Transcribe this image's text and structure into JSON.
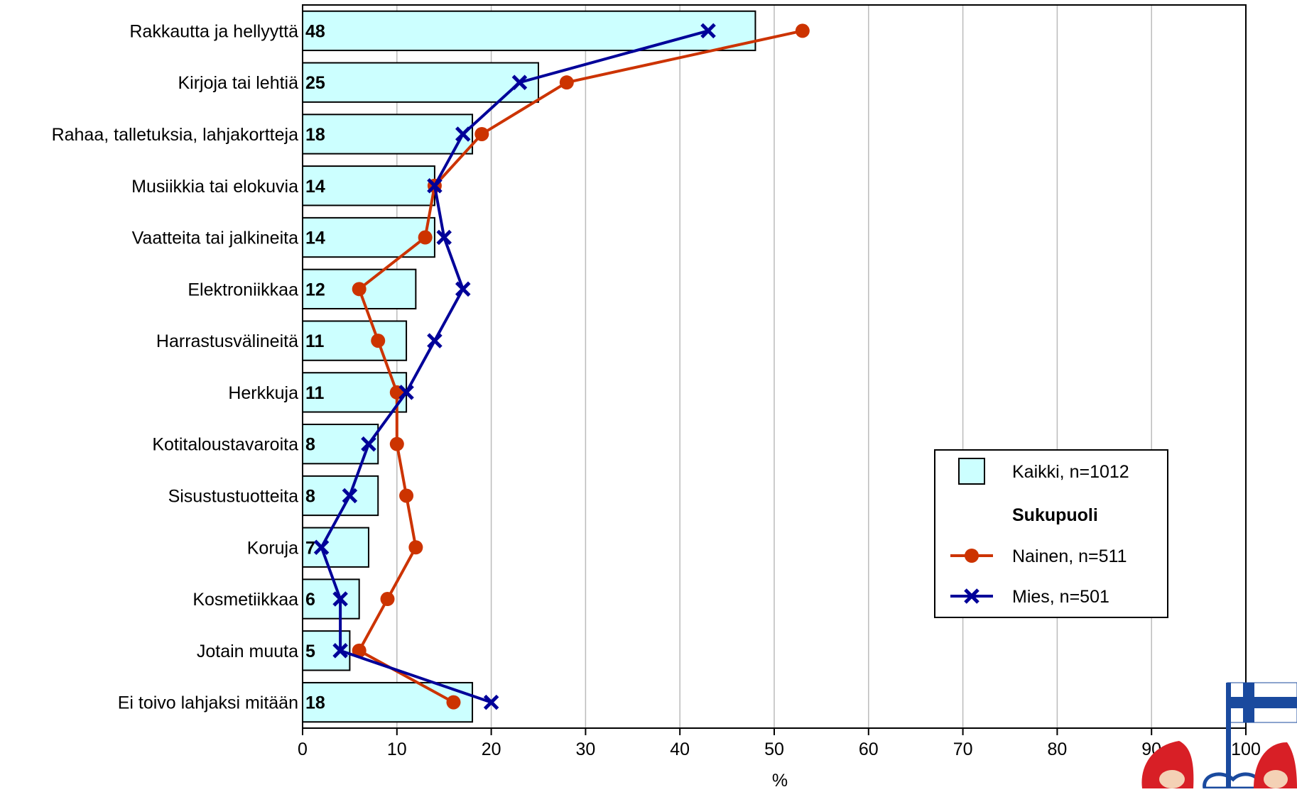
{
  "chart_data": {
    "type": "bar",
    "orientation": "horizontal",
    "categories": [
      "Rakkautta ja hellyyttä",
      "Kirjoja tai lehtiä",
      "Rahaa, talletuksia, lahjakortteja",
      "Musiikkia tai elokuvia",
      "Vaatteita tai jalkineita",
      "Elektroniikkaa",
      "Harrastusvälineitä",
      "Herkkuja",
      "Kotitaloustavaroita",
      "Sisustustuotteita",
      "Koruja",
      "Kosmetiikkaa",
      "Jotain muuta",
      "Ei toivo lahjaksi mitään"
    ],
    "series": [
      {
        "name": "Kaikki, n=1012",
        "type": "bar",
        "color": "#ccffff",
        "values": [
          48,
          25,
          18,
          14,
          14,
          12,
          11,
          11,
          8,
          8,
          7,
          6,
          5,
          18
        ]
      },
      {
        "name": "Nainen, n=511",
        "type": "line",
        "marker": "circle",
        "color": "#cc3300",
        "values": [
          53,
          28,
          19,
          14,
          13,
          6,
          8,
          10,
          10,
          11,
          12,
          9,
          6,
          16
        ]
      },
      {
        "name": "Mies, n=501",
        "type": "line",
        "marker": "x",
        "color": "#000099",
        "values": [
          43,
          23,
          17,
          14,
          15,
          17,
          14,
          11,
          7,
          5,
          2,
          4,
          4,
          20
        ]
      }
    ],
    "legend_group_title": "Sukupuoli",
    "legend_position": "bottom-right",
    "xlabel": "%",
    "xlim": [
      0,
      100
    ],
    "xticks": [
      "0",
      "10",
      "20",
      "30",
      "40",
      "50",
      "60",
      "70",
      "80",
      "90",
      "100"
    ],
    "grid": "vertical"
  },
  "logo": {
    "icon": "finland-flag-santa-mascot-icon",
    "flag_colors": {
      "cross": "#1a4a9e",
      "field": "#ffffff"
    },
    "hat_color": "#d81f26"
  }
}
